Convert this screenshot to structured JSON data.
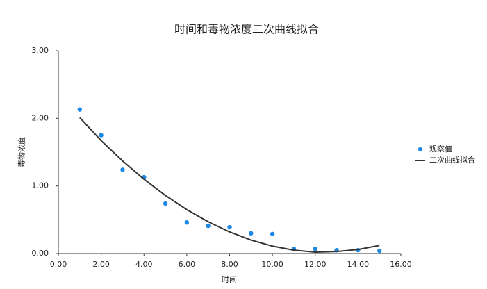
{
  "chart_data": {
    "type": "scatter",
    "title": "时间和毒物浓度二次曲线拟合",
    "x_label": "时间",
    "y_label": "毒物浓度",
    "xlim": [
      0,
      16
    ],
    "xticks": [
      {
        "value": 0,
        "label": "0.00"
      },
      {
        "value": 2,
        "label": "2.00"
      },
      {
        "value": 4,
        "label": "4.00"
      },
      {
        "value": 6,
        "label": "6.00"
      },
      {
        "value": 8,
        "label": "8.00"
      },
      {
        "value": 10,
        "label": "10.00"
      },
      {
        "value": 12,
        "label": "12.00"
      },
      {
        "value": 14,
        "label": "14.00"
      },
      {
        "value": 16,
        "label": "16.00"
      }
    ],
    "ylim": [
      0,
      3
    ],
    "yticks": [
      {
        "value": 0,
        "label": "0.00"
      },
      {
        "value": 1,
        "label": "1.00"
      },
      {
        "value": 2,
        "label": "2.00"
      },
      {
        "value": 3,
        "label": "3.00"
      }
    ],
    "legend": "right",
    "series": [
      {
        "name": "观察值",
        "type": "scatter",
        "color": "#1e88e5",
        "x": [
          1,
          2,
          3,
          4,
          5,
          6,
          7,
          8,
          9,
          10,
          11,
          12,
          13,
          14,
          15
        ],
        "values": [
          2.13,
          1.75,
          1.24,
          1.13,
          0.74,
          0.46,
          0.41,
          0.39,
          0.3,
          0.29,
          0.07,
          0.07,
          0.05,
          0.05,
          0.04
        ]
      },
      {
        "name": "二次曲线拟合",
        "type": "line",
        "color": "#333333",
        "x": [
          1,
          2,
          3,
          4,
          5,
          6,
          7,
          8,
          9,
          10,
          11,
          12,
          13,
          14,
          15
        ],
        "values": [
          2.01,
          1.67,
          1.37,
          1.1,
          0.86,
          0.65,
          0.47,
          0.32,
          0.2,
          0.11,
          0.05,
          0.02,
          0.03,
          0.06,
          0.12
        ]
      }
    ]
  }
}
